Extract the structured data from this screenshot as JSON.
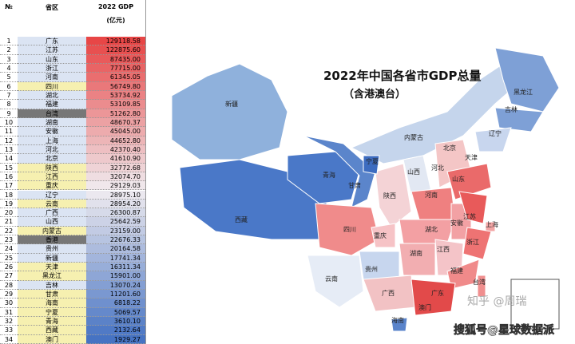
{
  "table": {
    "header": [
      "№",
      "省区",
      "2022 GDP",
      "(亿元)"
    ],
    "rows": [
      [
        1,
        "广东",
        "129118.58"
      ],
      [
        2,
        "江苏",
        "122875.60"
      ],
      [
        3,
        "山东",
        "87435.00"
      ],
      [
        4,
        "浙江",
        "77715.00"
      ],
      [
        5,
        "河南",
        "61345.05"
      ],
      [
        6,
        "四川",
        "56749.80"
      ],
      [
        7,
        "湖北",
        "53734.92"
      ],
      [
        8,
        "福建",
        "53109.85"
      ],
      [
        9,
        "台湾",
        "51262.80"
      ],
      [
        10,
        "湖南",
        "48670.37"
      ],
      [
        11,
        "安徽",
        "45045.00"
      ],
      [
        12,
        "上海",
        "44652.80"
      ],
      [
        13,
        "河北",
        "42370.40"
      ],
      [
        14,
        "北京",
        "41610.90"
      ],
      [
        15,
        "陕西",
        "32772.68"
      ],
      [
        16,
        "江西",
        "32074.70"
      ],
      [
        17,
        "重庆",
        "29129.03"
      ],
      [
        18,
        "辽宁",
        "28975.10"
      ],
      [
        19,
        "云南",
        "28954.20"
      ],
      [
        20,
        "广西",
        "26300.87"
      ],
      [
        21,
        "山西",
        "25642.59"
      ],
      [
        22,
        "内蒙古",
        "23159.00"
      ],
      [
        23,
        "香港",
        "22676.33"
      ],
      [
        24,
        "贵州",
        "20164.58"
      ],
      [
        25,
        "新疆",
        "17741.34"
      ],
      [
        26,
        "天津",
        "16311.34"
      ],
      [
        27,
        "黑龙江",
        "15901.00"
      ],
      [
        28,
        "吉林",
        "13070.24"
      ],
      [
        29,
        "甘肃",
        "11201.60"
      ],
      [
        30,
        "海南",
        "6818.22"
      ],
      [
        31,
        "宁夏",
        "5069.57"
      ],
      [
        32,
        "青海",
        "3610.10"
      ],
      [
        33,
        "西藏",
        "2132.64"
      ],
      [
        34,
        "澳门",
        "1929.27"
      ]
    ]
  },
  "map": {
    "title": "2022年中国各省市GDP总量",
    "subtitle": "（含港澳台）",
    "labels": [
      "新疆",
      "西藏",
      "青海",
      "甘肃",
      "宁夏",
      "内蒙古",
      "黑龙江",
      "吉林",
      "辽宁",
      "北京",
      "天津",
      "河北",
      "山西",
      "陕西",
      "河南",
      "山东",
      "四川",
      "重庆",
      "湖北",
      "安徽",
      "江苏",
      "上海",
      "浙江",
      "湖南",
      "江西",
      "福建",
      "贵州",
      "云南",
      "广西",
      "广东",
      "台湾",
      "海南",
      "澳门"
    ]
  },
  "watermarks": [
    "知乎 @周瑞",
    "搜狐号@星球数据派"
  ]
}
